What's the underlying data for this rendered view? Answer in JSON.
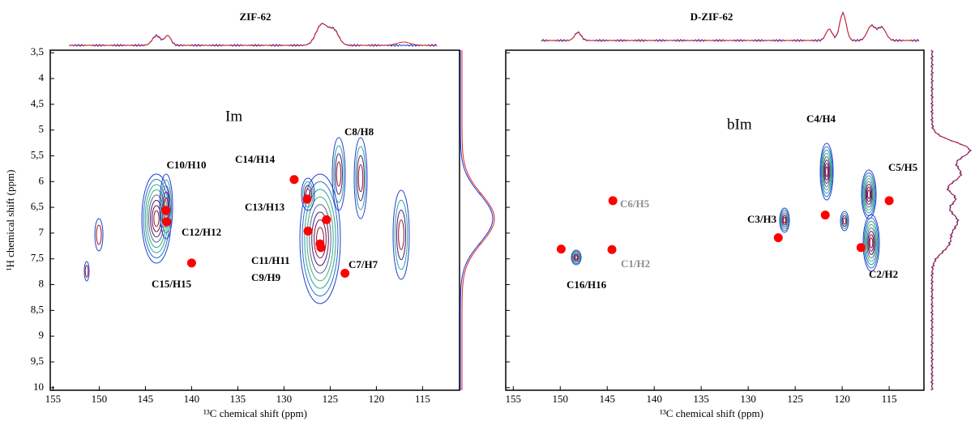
{
  "chart_data": [
    {
      "type": "scatter",
      "title": "ZIF-62",
      "x_label": "¹³C chemical shift (ppm)",
      "y_label": "¹H chemical shift (ppm)",
      "xlim": [
        155.3,
        111
      ],
      "ylim": [
        3.45,
        10.05
      ],
      "xticks": [
        155,
        150,
        145,
        140,
        135,
        130,
        125,
        120,
        115
      ],
      "yticks": [
        {
          "value": 3.5,
          "label": "3,5"
        },
        4,
        {
          "value": 4.5,
          "label": "4,5"
        },
        5,
        {
          "value": 5.5,
          "label": "5,5"
        },
        6,
        {
          "value": 6.5,
          "label": "6,5"
        },
        7,
        {
          "value": 7.5,
          "label": "7,5"
        },
        8,
        {
          "value": 8.5,
          "label": "8,5"
        },
        9,
        {
          "value": 9.5,
          "label": "9,5"
        },
        10
      ],
      "ytick_labels": true,
      "series": [
        {
          "color": "#ff0000",
          "x": [
            142.8,
            142.7,
            140.0,
            128.9,
            127.5,
            127.4,
            125.4,
            126.1,
            126.0,
            123.4
          ],
          "y": [
            6.56,
            6.78,
            7.58,
            5.96,
            6.34,
            6.96,
            6.74,
            7.21,
            7.28,
            7.78
          ]
        }
      ],
      "annotations": [
        {
          "text": "Im"
        },
        {
          "text": "C10/H10"
        },
        {
          "text": "C12/H12"
        },
        {
          "text": "C15/H15"
        },
        {
          "text": "C14/H14"
        },
        {
          "text": "C13/H13"
        },
        {
          "text": "C11/H11"
        },
        {
          "text": "C9/H9"
        },
        {
          "text": "C8/H8"
        },
        {
          "text": "C7/H7"
        }
      ]
    },
    {
      "type": "scatter",
      "title": "D-ZIF-62",
      "x_label": "¹³C chemical shift (ppm)",
      "xlim": [
        155.8,
        111.3
      ],
      "ylim": [
        3.45,
        10.05
      ],
      "xticks": [
        155,
        150,
        145,
        140,
        135,
        130,
        125,
        120,
        115
      ],
      "yticks": [
        3.5,
        4,
        4.5,
        5,
        5.5,
        6,
        6.5,
        7,
        7.5,
        8,
        8.5,
        9,
        9.5,
        10
      ],
      "ytick_labels": false,
      "series": [
        {
          "color": "#ff0000",
          "x": [
            149.9,
            144.4,
            144.5,
            126.8,
            121.8,
            115.0,
            118.0
          ],
          "y": [
            7.31,
            6.37,
            7.32,
            7.09,
            6.65,
            6.37,
            7.28
          ]
        }
      ],
      "annotations": [
        {
          "text": "bIm"
        },
        {
          "text": "C4/H4"
        },
        {
          "text": "C5/H5"
        },
        {
          "text": "C6/H5",
          "color": "#8c8c8c"
        },
        {
          "text": "C3/H3"
        },
        {
          "text": "C1/H2",
          "color": "#8c8c8c"
        },
        {
          "text": "C16/H16"
        },
        {
          "text": "C2/H2"
        }
      ]
    }
  ]
}
